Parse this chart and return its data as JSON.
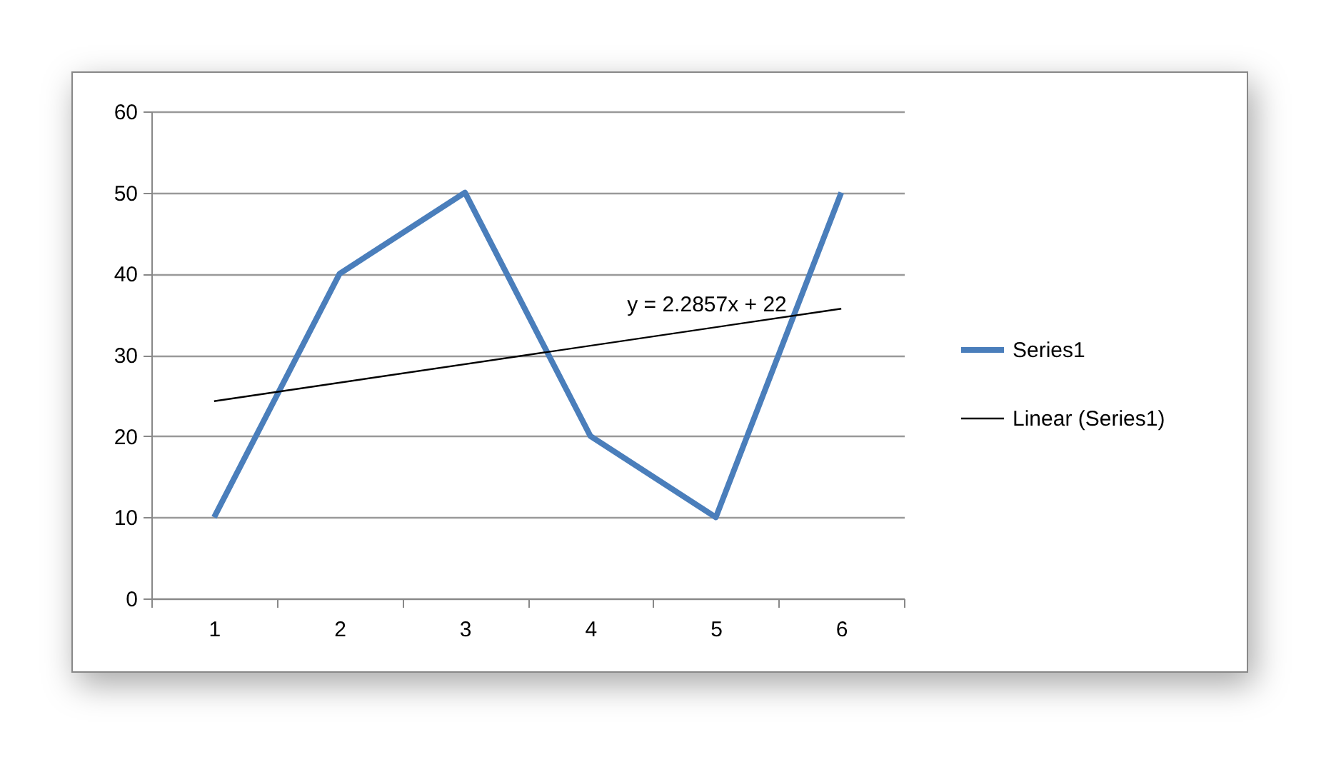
{
  "chart_data": {
    "type": "line",
    "categories": [
      "1",
      "2",
      "3",
      "4",
      "5",
      "6"
    ],
    "series": [
      {
        "name": "Series1",
        "color": "#4a7ebb",
        "values": [
          10,
          40,
          50,
          20,
          10,
          50
        ]
      },
      {
        "name": "Linear (Series1)",
        "type": "line",
        "color": "#000000",
        "x": [
          "1",
          "6"
        ],
        "values": [
          24.3,
          35.7
        ]
      }
    ],
    "ylim": [
      0,
      60
    ],
    "yticks": [
      0,
      10,
      20,
      30,
      40,
      50,
      60
    ],
    "grid": "y",
    "legend": "right",
    "marker": "none",
    "annotations": [
      "y = 2.2857x + 22"
    ]
  }
}
